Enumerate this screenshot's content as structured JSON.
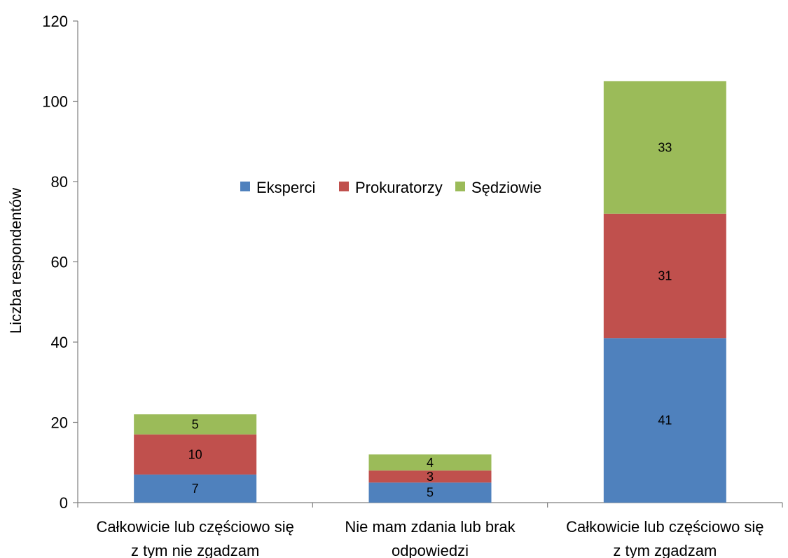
{
  "chart_data": {
    "type": "bar",
    "stacked": true,
    "categories": [
      [
        "Całkowicie lub częściowo się",
        "z tym nie zgadzam"
      ],
      [
        "Nie mam zdania lub brak",
        "odpowiedzi"
      ],
      [
        "Całkowicie lub częściowo się",
        "z tym zgadzam"
      ]
    ],
    "series": [
      {
        "name": "Eksperci",
        "values": [
          7,
          5,
          41
        ],
        "color": "#4f81bd"
      },
      {
        "name": "Prokuratorzy",
        "values": [
          10,
          3,
          31
        ],
        "color": "#c0504d"
      },
      {
        "name": "Sędziowie",
        "values": [
          5,
          4,
          33
        ],
        "color": "#9bbb59"
      }
    ],
    "ylabel": "Liczba respondentów",
    "ylim": [
      0,
      120
    ],
    "yticks": [
      0,
      20,
      40,
      60,
      80,
      100,
      120
    ],
    "grid": false,
    "legend_position": "center"
  }
}
